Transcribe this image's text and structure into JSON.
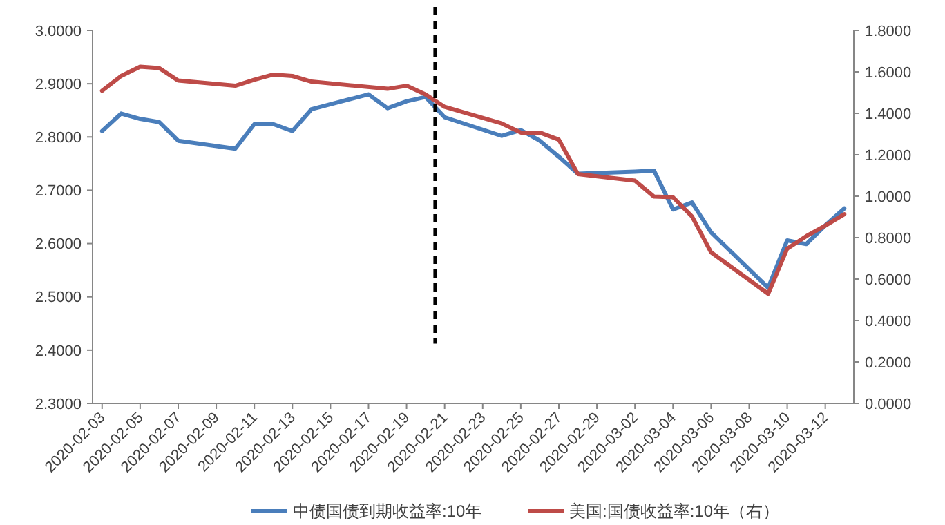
{
  "chart_data": {
    "type": "line",
    "xlim": [
      "2020-02-02T12:00",
      "2020-03-13T12:00"
    ],
    "xticks": [
      "2020-02-03",
      "2020-02-05",
      "2020-02-07",
      "2020-02-09",
      "2020-02-11",
      "2020-02-13",
      "2020-02-15",
      "2020-02-17",
      "2020-02-19",
      "2020-02-21",
      "2020-02-23",
      "2020-02-25",
      "2020-02-27",
      "2020-02-29",
      "2020-03-02",
      "2020-03-04",
      "2020-03-06",
      "2020-03-08",
      "2020-03-10",
      "2020-03-12"
    ],
    "ylim": [
      2.3,
      3.0
    ],
    "yticks": [
      {
        "value": 2.3,
        "label": "2.3000"
      },
      {
        "value": 2.4,
        "label": "2.4000"
      },
      {
        "value": 2.5,
        "label": "2.5000"
      },
      {
        "value": 2.6,
        "label": "2.6000"
      },
      {
        "value": 2.7,
        "label": "2.7000"
      },
      {
        "value": 2.8,
        "label": "2.8000"
      },
      {
        "value": 2.9,
        "label": "2.9000"
      },
      {
        "value": 3.0,
        "label": "3.0000"
      }
    ],
    "y2lim": [
      0,
      1.8
    ],
    "y2ticks": [
      {
        "value": 0,
        "label": "0.0000"
      },
      {
        "value": 0.2,
        "label": "0.2000"
      },
      {
        "value": 0.4,
        "label": "0.4000"
      },
      {
        "value": 0.6,
        "label": "0.6000"
      },
      {
        "value": 0.8,
        "label": "0.8000"
      },
      {
        "value": 1.0,
        "label": "1.0000"
      },
      {
        "value": 1.2,
        "label": "1.2000"
      },
      {
        "value": 1.4,
        "label": "1.4000"
      },
      {
        "value": 1.6,
        "label": "1.6000"
      },
      {
        "value": 1.8,
        "label": "1.8000"
      }
    ],
    "grid": false,
    "legend": "bottom",
    "marker": "none",
    "line_style": "solid",
    "ref_lines": [
      {
        "axis": "x",
        "value": "2020-02-20T12:00",
        "color": "#000000",
        "line_style": "dashed"
      }
    ],
    "series": [
      {
        "name": "中债国债到期收益率:10年",
        "color": "#4a7ebb",
        "x": [
          "2020-02-03",
          "2020-02-04",
          "2020-02-05",
          "2020-02-06",
          "2020-02-07",
          "2020-02-10",
          "2020-02-11",
          "2020-02-12",
          "2020-02-13",
          "2020-02-14",
          "2020-02-17",
          "2020-02-18",
          "2020-02-19",
          "2020-02-20",
          "2020-02-21",
          "2020-02-24",
          "2020-02-25",
          "2020-02-26",
          "2020-02-27",
          "2020-02-28",
          "2020-03-02",
          "2020-03-03",
          "2020-03-04",
          "2020-03-05",
          "2020-03-06",
          "2020-03-09",
          "2020-03-10",
          "2020-03-11",
          "2020-03-12",
          "2020-03-13"
        ],
        "values": [
          2.811,
          2.844,
          2.834,
          2.828,
          2.793,
          2.778,
          2.824,
          2.824,
          2.811,
          2.852,
          2.88,
          2.854,
          2.867,
          2.875,
          2.837,
          2.802,
          2.813,
          2.793,
          2.763,
          2.731,
          2.735,
          2.737,
          2.664,
          2.677,
          2.621,
          2.517,
          2.606,
          2.599,
          2.634,
          2.666
        ]
      },
      {
        "name": "美国:国债收益率:10年（右）",
        "color": "#be4b48",
        "axis": "y2",
        "x": [
          "2020-02-03",
          "2020-02-04",
          "2020-02-05",
          "2020-02-06",
          "2020-02-07",
          "2020-02-10",
          "2020-02-11",
          "2020-02-12",
          "2020-02-13",
          "2020-02-14",
          "2020-02-18",
          "2020-02-19",
          "2020-02-20",
          "2020-02-21",
          "2020-02-24",
          "2020-02-25",
          "2020-02-26",
          "2020-02-27",
          "2020-02-28",
          "2020-03-02",
          "2020-03-03",
          "2020-03-04",
          "2020-03-05",
          "2020-03-06",
          "2020-03-09",
          "2020-03-10",
          "2020-03-11",
          "2020-03-12",
          "2020-03-13"
        ],
        "values": [
          1.509,
          1.58,
          1.625,
          1.618,
          1.558,
          1.533,
          1.562,
          1.587,
          1.58,
          1.553,
          1.518,
          1.533,
          1.491,
          1.431,
          1.351,
          1.307,
          1.307,
          1.273,
          1.107,
          1.075,
          0.998,
          0.995,
          0.902,
          0.729,
          0.529,
          0.747,
          0.807,
          0.858,
          0.913
        ]
      }
    ]
  }
}
